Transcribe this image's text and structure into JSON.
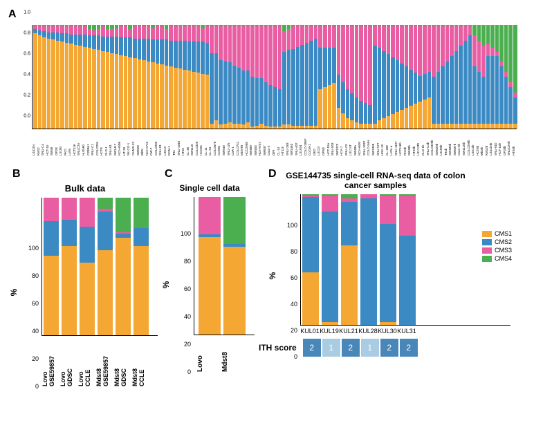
{
  "colors": {
    "cms1": "#f4a733",
    "cms2": "#3b8ac4",
    "cms3": "#e95da3",
    "cms4": "#4bae4f",
    "ith1": "#a9cce3",
    "ith2": "#4a87b9"
  },
  "legend": {
    "items": [
      {
        "label": "CMS1",
        "colorKey": "cms1"
      },
      {
        "label": "CMS2",
        "colorKey": "cms2"
      },
      {
        "label": "CMS3",
        "colorKey": "cms3"
      },
      {
        "label": "CMS4",
        "colorKey": "cms4"
      }
    ]
  },
  "panelA": {
    "label": "A",
    "ylim": [
      0.0,
      1.0
    ],
    "yticks": [
      0.0,
      0.2,
      0.4,
      0.6,
      0.8,
      1.0
    ],
    "bars": [
      {
        "label": "LS411N",
        "cms1": 0.92,
        "cms2": 0.04,
        "cms3": 0.03,
        "cms4": 0.01
      },
      {
        "label": "KM12",
        "cms1": 0.9,
        "cms2": 0.05,
        "cms3": 0.04,
        "cms4": 0.01
      },
      {
        "label": "SNU-C4",
        "cms1": 0.88,
        "cms2": 0.06,
        "cms3": 0.05,
        "cms4": 0.01
      },
      {
        "label": "HCT-15",
        "cms1": 0.87,
        "cms2": 0.06,
        "cms3": 0.06,
        "cms4": 0.01
      },
      {
        "label": "SW48",
        "cms1": 0.86,
        "cms2": 0.07,
        "cms3": 0.06,
        "cms4": 0.01
      },
      {
        "label": "GP2d",
        "cms1": 0.85,
        "cms2": 0.08,
        "cms3": 0.06,
        "cms4": 0.01
      },
      {
        "label": "LS180",
        "cms1": 0.84,
        "cms2": 0.08,
        "cms3": 0.07,
        "cms4": 0.01
      },
      {
        "label": "RKO",
        "cms1": 0.83,
        "cms2": 0.09,
        "cms3": 0.07,
        "cms4": 0.01
      },
      {
        "label": "LoVo",
        "cms1": 0.82,
        "cms2": 0.09,
        "cms3": 0.08,
        "cms4": 0.01
      },
      {
        "label": "HCT116",
        "cms1": 0.81,
        "cms2": 0.1,
        "cms3": 0.08,
        "cms4": 0.01
      },
      {
        "label": "SNUC2A",
        "cms1": 0.8,
        "cms2": 0.11,
        "cms3": 0.08,
        "cms4": 0.01
      },
      {
        "label": "HuTu80",
        "cms1": 0.79,
        "cms2": 0.12,
        "cms3": 0.08,
        "cms4": 0.01
      },
      {
        "label": "C2BBe1",
        "cms1": 0.78,
        "cms2": 0.12,
        "cms3": 0.06,
        "cms4": 0.04
      },
      {
        "label": "SNU-C1",
        "cms1": 0.77,
        "cms2": 0.13,
        "cms3": 0.05,
        "cms4": 0.05
      },
      {
        "label": "COLO201",
        "cms1": 0.76,
        "cms2": 0.14,
        "cms3": 0.06,
        "cms4": 0.04
      },
      {
        "label": "HCT8",
        "cms1": 0.75,
        "cms2": 0.14,
        "cms3": 0.1,
        "cms4": 0.01
      },
      {
        "label": "DLD-1",
        "cms1": 0.74,
        "cms2": 0.15,
        "cms3": 0.07,
        "cms4": 0.04
      },
      {
        "label": "SNU-61",
        "cms1": 0.73,
        "cms2": 0.16,
        "cms3": 0.07,
        "cms4": 0.04
      },
      {
        "label": "SW1417",
        "cms1": 0.72,
        "cms2": 0.17,
        "cms3": 0.08,
        "cms4": 0.03
      },
      {
        "label": "NCI-H508",
        "cms1": 0.71,
        "cms2": 0.17,
        "cms3": 0.11,
        "cms4": 0.01
      },
      {
        "label": "HT-29",
        "cms1": 0.7,
        "cms2": 0.18,
        "cms3": 0.11,
        "cms4": 0.01
      },
      {
        "label": "SK-CO-1",
        "cms1": 0.69,
        "cms2": 0.19,
        "cms3": 0.08,
        "cms4": 0.04
      },
      {
        "label": "OUMS-23",
        "cms1": 0.68,
        "cms2": 0.19,
        "cms3": 0.12,
        "cms4": 0.01
      },
      {
        "label": "SW620",
        "cms1": 0.67,
        "cms2": 0.2,
        "cms3": 0.12,
        "cms4": 0.01
      },
      {
        "label": "WiDr",
        "cms1": 0.66,
        "cms2": 0.21,
        "cms3": 0.12,
        "cms4": 0.01
      },
      {
        "label": "NCI-H716",
        "cms1": 0.65,
        "cms2": 0.22,
        "cms3": 0.12,
        "cms4": 0.01
      },
      {
        "label": "CW-2",
        "cms1": 0.64,
        "cms2": 0.22,
        "cms3": 0.11,
        "cms4": 0.03
      },
      {
        "label": "COLO205",
        "cms1": 0.63,
        "cms2": 0.23,
        "cms3": 0.13,
        "cms4": 0.01
      },
      {
        "label": "SNU-81",
        "cms1": 0.62,
        "cms2": 0.24,
        "cms3": 0.13,
        "cms4": 0.01
      },
      {
        "label": "LS513",
        "cms1": 0.61,
        "cms2": 0.25,
        "cms3": 0.1,
        "cms4": 0.04
      },
      {
        "label": "RCM-1",
        "cms1": 0.6,
        "cms2": 0.25,
        "cms3": 0.14,
        "cms4": 0.01
      },
      {
        "label": "T84",
        "cms1": 0.59,
        "cms2": 0.26,
        "cms3": 0.14,
        "cms4": 0.01
      },
      {
        "label": "SNU-1040",
        "cms1": 0.58,
        "cms2": 0.27,
        "cms3": 0.14,
        "cms4": 0.01
      },
      {
        "label": "HT55",
        "cms1": 0.57,
        "cms2": 0.28,
        "cms3": 0.14,
        "cms4": 0.01
      },
      {
        "label": "CL-40",
        "cms1": 0.56,
        "cms2": 0.28,
        "cms3": 0.15,
        "cms4": 0.01
      },
      {
        "label": "SW1116",
        "cms1": 0.55,
        "cms2": 0.29,
        "cms3": 0.15,
        "cms4": 0.01
      },
      {
        "label": "COLO320",
        "cms1": 0.54,
        "cms2": 0.3,
        "cms3": 0.15,
        "cms4": 0.01
      },
      {
        "label": "HCC56",
        "cms1": 0.53,
        "cms2": 0.31,
        "cms3": 0.13,
        "cms4": 0.03
      },
      {
        "label": "CL-11",
        "cms1": 0.52,
        "cms2": 0.31,
        "cms3": 0.16,
        "cms4": 0.01
      },
      {
        "label": "CL-34",
        "cms1": 0.05,
        "cms2": 0.68,
        "cms3": 0.26,
        "cms4": 0.01
      },
      {
        "label": "COLO678",
        "cms1": 0.08,
        "cms2": 0.65,
        "cms3": 0.26,
        "cms4": 0.01
      },
      {
        "label": "CCK81",
        "cms1": 0.04,
        "cms2": 0.62,
        "cms3": 0.33,
        "cms4": 0.01
      },
      {
        "label": "SW948",
        "cms1": 0.05,
        "cms2": 0.6,
        "cms3": 0.34,
        "cms4": 0.01
      },
      {
        "label": "SNU-175",
        "cms1": 0.06,
        "cms2": 0.58,
        "cms3": 0.35,
        "cms4": 0.01
      },
      {
        "label": "CaR-1",
        "cms1": 0.05,
        "cms2": 0.56,
        "cms3": 0.38,
        "cms4": 0.01
      },
      {
        "label": "COLO741",
        "cms1": 0.05,
        "cms2": 0.54,
        "cms3": 0.4,
        "cms4": 0.01
      },
      {
        "label": "MDST8",
        "cms1": 0.04,
        "cms2": 0.52,
        "cms3": 0.43,
        "cms4": 0.01
      },
      {
        "label": "HCC2998",
        "cms1": 0.06,
        "cms2": 0.5,
        "cms3": 0.43,
        "cms4": 0.01
      },
      {
        "label": "SW480",
        "cms1": 0.02,
        "cms2": 0.48,
        "cms3": 0.49,
        "cms4": 0.01
      },
      {
        "label": "SW403",
        "cms1": 0.03,
        "cms2": 0.46,
        "cms3": 0.5,
        "cms4": 0.01
      },
      {
        "label": "NCI-H747",
        "cms1": 0.05,
        "cms2": 0.44,
        "cms3": 0.5,
        "cms4": 0.01
      },
      {
        "label": "SW837",
        "cms1": 0.03,
        "cms2": 0.42,
        "cms3": 0.54,
        "cms4": 0.01
      },
      {
        "label": "Caco-2",
        "cms1": 0.02,
        "cms2": 0.4,
        "cms3": 0.57,
        "cms4": 0.01
      },
      {
        "label": "DiFi",
        "cms1": 0.02,
        "cms2": 0.38,
        "cms3": 0.59,
        "cms4": 0.01
      },
      {
        "label": "CL-14",
        "cms1": 0.02,
        "cms2": 0.36,
        "cms3": 0.61,
        "cms4": 0.01
      },
      {
        "label": "HT115",
        "cms1": 0.04,
        "cms2": 0.7,
        "cms3": 0.2,
        "cms4": 0.06
      },
      {
        "label": "SNU-283",
        "cms1": 0.04,
        "cms2": 0.72,
        "cms3": 0.2,
        "cms4": 0.04
      },
      {
        "label": "SW1463",
        "cms1": 0.03,
        "cms2": 0.74,
        "cms3": 0.22,
        "cms4": 0.01
      },
      {
        "label": "SNU-407",
        "cms1": 0.03,
        "cms2": 0.76,
        "cms3": 0.2,
        "cms4": 0.01
      },
      {
        "label": "LS1034",
        "cms1": 0.03,
        "cms2": 0.78,
        "cms3": 0.18,
        "cms4": 0.01
      },
      {
        "label": "COLO-206F",
        "cms1": 0.03,
        "cms2": 0.8,
        "cms3": 0.16,
        "cms4": 0.01
      },
      {
        "label": "CoCM-1",
        "cms1": 0.03,
        "cms2": 0.82,
        "cms3": 0.14,
        "cms4": 0.01
      },
      {
        "label": "GEO",
        "cms1": 0.03,
        "cms2": 0.84,
        "cms3": 0.12,
        "cms4": 0.01
      },
      {
        "label": "LS123",
        "cms1": 0.38,
        "cms2": 0.4,
        "cms3": 0.21,
        "cms4": 0.01
      },
      {
        "label": "GP5d",
        "cms1": 0.4,
        "cms2": 0.38,
        "cms3": 0.21,
        "cms4": 0.01
      },
      {
        "label": "HCT-15a",
        "cms1": 0.42,
        "cms2": 0.36,
        "cms3": 0.21,
        "cms4": 0.01
      },
      {
        "label": "SNU-503",
        "cms1": 0.44,
        "cms2": 0.34,
        "cms3": 0.21,
        "cms4": 0.01
      },
      {
        "label": "SW1222",
        "cms1": 0.2,
        "cms2": 0.32,
        "cms3": 0.47,
        "cms4": 0.01
      },
      {
        "label": "HCA-7",
        "cms1": 0.15,
        "cms2": 0.3,
        "cms3": 0.54,
        "cms4": 0.01
      },
      {
        "label": "SNU-C5",
        "cms1": 0.1,
        "cms2": 0.28,
        "cms3": 0.61,
        "cms4": 0.01
      },
      {
        "label": "LS174T",
        "cms1": 0.08,
        "cms2": 0.26,
        "cms3": 0.65,
        "cms4": 0.01
      },
      {
        "label": "SW48a",
        "cms1": 0.06,
        "cms2": 0.24,
        "cms3": 0.69,
        "cms4": 0.01
      },
      {
        "label": "NCI-H630",
        "cms1": 0.05,
        "cms2": 0.22,
        "cms3": 0.72,
        "cms4": 0.01
      },
      {
        "label": "SNU-1033",
        "cms1": 0.05,
        "cms2": 0.2,
        "cms3": 0.74,
        "cms4": 0.01
      },
      {
        "label": "COLO-94H",
        "cms1": 0.05,
        "cms2": 0.18,
        "cms3": 0.76,
        "cms4": 0.01
      },
      {
        "label": "SW1398",
        "cms1": 0.05,
        "cms2": 0.75,
        "cms3": 0.19,
        "cms4": 0.01
      },
      {
        "label": "SNU-977",
        "cms1": 0.08,
        "cms2": 0.7,
        "cms3": 0.21,
        "cms4": 0.01
      },
      {
        "label": "HRA-19",
        "cms1": 0.1,
        "cms2": 0.65,
        "cms3": 0.24,
        "cms4": 0.01
      },
      {
        "label": "CL-188",
        "cms1": 0.12,
        "cms2": 0.6,
        "cms3": 0.27,
        "cms4": 0.01
      },
      {
        "label": "LoVo-a",
        "cms1": 0.14,
        "cms2": 0.55,
        "cms3": 0.3,
        "cms4": 0.01
      },
      {
        "label": "SNU-1197",
        "cms1": 0.16,
        "cms2": 0.5,
        "cms3": 0.33,
        "cms4": 0.01
      },
      {
        "label": "HCT116b",
        "cms1": 0.18,
        "cms2": 0.45,
        "cms3": 0.36,
        "cms4": 0.01
      },
      {
        "label": "RKOb",
        "cms1": 0.2,
        "cms2": 0.4,
        "cms3": 0.39,
        "cms4": 0.01
      },
      {
        "label": "SW48b",
        "cms1": 0.22,
        "cms2": 0.35,
        "cms3": 0.42,
        "cms4": 0.01
      },
      {
        "label": "HT29b",
        "cms1": 0.24,
        "cms2": 0.3,
        "cms3": 0.45,
        "cms4": 0.01
      },
      {
        "label": "LS174Tb",
        "cms1": 0.26,
        "cms2": 0.25,
        "cms3": 0.48,
        "cms4": 0.01
      },
      {
        "label": "DLD-1b",
        "cms1": 0.28,
        "cms2": 0.25,
        "cms3": 0.46,
        "cms4": 0.01
      },
      {
        "label": "SNU-C4b",
        "cms1": 0.3,
        "cms2": 0.25,
        "cms3": 0.44,
        "cms4": 0.01
      },
      {
        "label": "COLO320b",
        "cms1": 0.05,
        "cms2": 0.45,
        "cms3": 0.49,
        "cms4": 0.01
      },
      {
        "label": "SW620b",
        "cms1": 0.05,
        "cms2": 0.5,
        "cms3": 0.44,
        "cms4": 0.01
      },
      {
        "label": "LS180b",
        "cms1": 0.05,
        "cms2": 0.55,
        "cms3": 0.39,
        "cms4": 0.01
      },
      {
        "label": "T84b",
        "cms1": 0.05,
        "cms2": 0.6,
        "cms3": 0.34,
        "cms4": 0.01
      },
      {
        "label": "SW480b",
        "cms1": 0.05,
        "cms2": 0.65,
        "cms3": 0.29,
        "cms4": 0.01
      },
      {
        "label": "SW837b",
        "cms1": 0.05,
        "cms2": 0.7,
        "cms3": 0.24,
        "cms4": 0.01
      },
      {
        "label": "Caco-2b",
        "cms1": 0.05,
        "cms2": 0.75,
        "cms3": 0.19,
        "cms4": 0.01
      },
      {
        "label": "SW1116b",
        "cms1": 0.05,
        "cms2": 0.8,
        "cms3": 0.14,
        "cms4": 0.01
      },
      {
        "label": "COLO205b",
        "cms1": 0.05,
        "cms2": 0.85,
        "cms3": 0.09,
        "cms4": 0.01
      },
      {
        "label": "LS513b",
        "cms1": 0.05,
        "cms2": 0.55,
        "cms3": 0.3,
        "cms4": 0.1
      },
      {
        "label": "HCT8b",
        "cms1": 0.05,
        "cms2": 0.5,
        "cms3": 0.3,
        "cms4": 0.15
      },
      {
        "label": "WiDrb",
        "cms1": 0.05,
        "cms2": 0.45,
        "cms3": 0.3,
        "cms4": 0.2
      },
      {
        "label": "KM12b",
        "cms1": 0.05,
        "cms2": 0.65,
        "cms3": 0.12,
        "cms4": 0.18
      },
      {
        "label": "LS411Nb",
        "cms1": 0.05,
        "cms2": 0.65,
        "cms3": 0.08,
        "cms4": 0.22
      },
      {
        "label": "SNU-61b",
        "cms1": 0.05,
        "cms2": 0.65,
        "cms3": 0.04,
        "cms4": 0.26
      },
      {
        "label": "HCT-15b",
        "cms1": 0.05,
        "cms2": 0.55,
        "cms3": 0.05,
        "cms4": 0.35
      },
      {
        "label": "GP2db",
        "cms1": 0.05,
        "cms2": 0.45,
        "cms3": 0.05,
        "cms4": 0.45
      },
      {
        "label": "SNUC2Ab",
        "cms1": 0.05,
        "cms2": 0.35,
        "cms3": 0.05,
        "cms4": 0.55
      },
      {
        "label": "HT55b",
        "cms1": 0.05,
        "cms2": 0.25,
        "cms3": 0.05,
        "cms4": 0.65
      }
    ]
  },
  "panelB": {
    "label": "B",
    "title": "Bulk data",
    "ylabel": "%",
    "ylim": [
      0,
      100
    ],
    "yticks": [
      0,
      20,
      40,
      60,
      80,
      100
    ],
    "bars": [
      {
        "label1": "Lovo",
        "label2": "GSE59857",
        "cms1": 58,
        "cms2": 25,
        "cms3": 17,
        "cms4": 0
      },
      {
        "label1": "Lovo",
        "label2": "GDSC",
        "cms1": 65,
        "cms2": 19,
        "cms3": 16,
        "cms4": 0
      },
      {
        "label1": "Lovo",
        "label2": "CCLE",
        "cms1": 53,
        "cms2": 26,
        "cms3": 21,
        "cms4": 0
      },
      {
        "label1": "Mdst8",
        "label2": "GSE59857",
        "cms1": 62,
        "cms2": 28,
        "cms3": 2,
        "cms4": 8
      },
      {
        "label1": "Mdst8",
        "label2": "GDSC",
        "cms1": 71,
        "cms2": 3,
        "cms3": 1,
        "cms4": 25
      },
      {
        "label1": "Mdst8",
        "label2": "CCLE",
        "cms1": 65,
        "cms2": 13,
        "cms3": 0,
        "cms4": 22
      }
    ]
  },
  "panelC": {
    "label": "C",
    "title": "Single cell data",
    "ylabel": "%",
    "ylim": [
      0,
      100
    ],
    "yticks": [
      0,
      20,
      40,
      60,
      80,
      100
    ],
    "bars": [
      {
        "label": "Lovo",
        "cms1": 71,
        "cms2": 2,
        "cms3": 27,
        "cms4": 0
      },
      {
        "label": "Mdst8",
        "cms1": 64,
        "cms2": 2,
        "cms3": 0,
        "cms4": 34
      }
    ]
  },
  "panelD": {
    "label": "D",
    "title": "GSE144735 single-cell RNA-seq data of colon cancer samples",
    "ylabel": "%",
    "ylim": [
      0,
      100
    ],
    "yticks": [
      0,
      20,
      40,
      60,
      80,
      100
    ],
    "bars": [
      {
        "label": "KUL01",
        "cms1": 40,
        "cms2": 58,
        "cms3": 1,
        "cms4": 1
      },
      {
        "label": "KUL19",
        "cms1": 2,
        "cms2": 85,
        "cms3": 12,
        "cms4": 1
      },
      {
        "label": "KUL21",
        "cms1": 61,
        "cms2": 33,
        "cms3": 3,
        "cms4": 3
      },
      {
        "label": "KUL28",
        "cms1": 0,
        "cms2": 97,
        "cms3": 3,
        "cms4": 0
      },
      {
        "label": "KUL30",
        "cms1": 2,
        "cms2": 75,
        "cms3": 22,
        "cms4": 1
      },
      {
        "label": "KUL31",
        "cms1": 0,
        "cms2": 68,
        "cms3": 31,
        "cms4": 1
      }
    ],
    "ith_label": "ITH score",
    "ith_scores": [
      2,
      1,
      2,
      1,
      2,
      2
    ]
  }
}
